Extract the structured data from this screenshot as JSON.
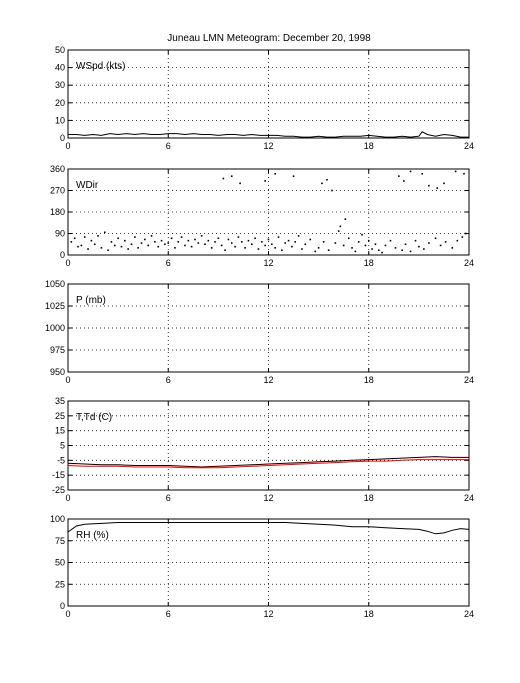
{
  "title": "Juneau LMN Meteogram:  December 20, 1998",
  "colors": {
    "line": "#000000",
    "dewpoint": "#ff0000",
    "grid": "#000000",
    "background": "#ffffff"
  },
  "chart_data": [
    {
      "type": "line",
      "label": "WSpd (kts)",
      "xlim": [
        0,
        24
      ],
      "ylim": [
        0,
        50
      ],
      "xticks": [
        0,
        6,
        12,
        18,
        24
      ],
      "yticks": [
        0,
        10,
        20,
        30,
        40,
        50
      ],
      "grid": true,
      "series": [
        {
          "color": "#000000",
          "x": [
            0,
            0.5,
            1,
            1.5,
            2,
            2.5,
            3,
            3.5,
            4,
            4.5,
            5,
            5.5,
            6,
            6.5,
            7,
            7.5,
            8,
            8.5,
            9,
            9.5,
            10,
            10.5,
            11,
            11.5,
            12,
            12.5,
            13,
            13.5,
            14,
            14.5,
            15,
            15.5,
            16,
            16.5,
            17,
            17.5,
            18,
            18.5,
            19,
            19.5,
            20,
            20.5,
            21,
            21.2,
            21.5,
            22,
            22.5,
            23,
            23.5,
            24
          ],
          "y": [
            2,
            2,
            1.5,
            2,
            1.5,
            2.5,
            2,
            2.5,
            2,
            2.5,
            2,
            2,
            2.5,
            2.5,
            2,
            2.5,
            2,
            2,
            1.5,
            2,
            2,
            1.5,
            2,
            1.5,
            1.5,
            1.5,
            1,
            1,
            0.5,
            0.5,
            1,
            0.5,
            0.5,
            1,
            1,
            1,
            1.5,
            1,
            0.5,
            0.5,
            1,
            0.5,
            1,
            3.5,
            2,
            1,
            2,
            1.5,
            0.5,
            0.5
          ]
        }
      ]
    },
    {
      "type": "scatter",
      "label": "WDir",
      "xlim": [
        0,
        24
      ],
      "ylim": [
        0,
        360
      ],
      "xticks": [
        0,
        6,
        12,
        18,
        24
      ],
      "yticks": [
        0,
        90,
        180,
        270,
        360
      ],
      "grid": true,
      "series": [
        {
          "color": "#000000",
          "x": [
            0.2,
            0.4,
            0.6,
            0.8,
            1,
            1.2,
            1.4,
            1.6,
            1.8,
            2,
            2.2,
            2.4,
            2.6,
            2.8,
            3,
            3.2,
            3.4,
            3.6,
            3.8,
            4,
            4.2,
            4.4,
            4.6,
            4.8,
            5,
            5.2,
            5.4,
            5.6,
            5.8,
            6,
            6.2,
            6.4,
            6.6,
            6.8,
            7,
            7.2,
            7.4,
            7.6,
            7.8,
            8,
            8.2,
            8.4,
            8.6,
            8.8,
            9,
            9.2,
            9.4,
            9.6,
            9.8,
            10,
            10.2,
            10.4,
            10.6,
            10.8,
            11,
            11.2,
            11.4,
            11.6,
            11.8,
            12,
            12.2,
            12.4,
            12.6,
            12.8,
            13,
            13.2,
            13.4,
            13.6,
            13.8,
            14,
            14.2,
            14.5,
            14.8,
            15,
            15.3,
            15.6,
            16,
            16.2,
            16.5,
            16.8,
            17,
            17.2,
            17.4,
            17.6,
            17.8,
            18,
            18.2,
            18.4,
            18.6,
            18.8,
            19,
            19.3,
            19.6,
            20,
            20.2,
            20.5,
            20.8,
            21,
            21.3,
            21.6,
            22,
            22.3,
            22.6,
            23,
            23.3,
            23.6,
            23.8,
            9.3,
            9.8,
            10.3,
            11.8,
            12.4,
            13.5,
            15.2,
            15.5,
            15.8,
            16.3,
            16.6,
            19.8,
            20.1,
            20.5,
            21.2,
            21.6,
            22.1,
            22.5,
            23.2,
            23.7
          ],
          "y": [
            55,
            70,
            35,
            40,
            75,
            25,
            60,
            45,
            80,
            30,
            95,
            20,
            55,
            40,
            70,
            35,
            60,
            25,
            45,
            75,
            30,
            50,
            65,
            40,
            80,
            55,
            35,
            60,
            45,
            50,
            70,
            30,
            55,
            75,
            40,
            60,
            35,
            65,
            50,
            80,
            45,
            60,
            30,
            55,
            70,
            40,
            20,
            65,
            50,
            35,
            75,
            55,
            30,
            60,
            45,
            70,
            25,
            55,
            40,
            65,
            45,
            30,
            75,
            20,
            50,
            60,
            35,
            55,
            80,
            25,
            45,
            65,
            15,
            30,
            55,
            20,
            50,
            100,
            40,
            70,
            30,
            15,
            55,
            85,
            40,
            60,
            25,
            45,
            20,
            10,
            40,
            60,
            30,
            20,
            45,
            15,
            60,
            35,
            25,
            50,
            70,
            40,
            55,
            30,
            60,
            75,
            90,
            320,
            330,
            300,
            310,
            340,
            330,
            300,
            315,
            270,
            120,
            150,
            330,
            310,
            350,
            340,
            290,
            280,
            300,
            350,
            340
          ]
        }
      ]
    },
    {
      "type": "line",
      "label": "P (mb)",
      "xlim": [
        0,
        24
      ],
      "ylim": [
        950,
        1050
      ],
      "xticks": [
        0,
        6,
        12,
        18,
        24
      ],
      "yticks": [
        950,
        975,
        1000,
        1025,
        1050
      ],
      "grid": true,
      "series": []
    },
    {
      "type": "line",
      "label": "T,Td (C)",
      "xlim": [
        0,
        24
      ],
      "ylim": [
        -25,
        35
      ],
      "xticks": [
        0,
        6,
        12,
        18,
        24
      ],
      "yticks": [
        -25,
        -15,
        -5,
        5,
        15,
        25,
        35
      ],
      "grid": true,
      "series": [
        {
          "color": "#000000",
          "x": [
            0,
            1,
            2,
            3,
            4,
            5,
            6,
            7,
            8,
            9,
            10,
            11,
            12,
            13,
            14,
            15,
            16,
            17,
            18,
            19,
            20,
            21,
            22,
            23,
            24
          ],
          "y": [
            -7,
            -7.5,
            -8,
            -8,
            -8.5,
            -8.5,
            -8.5,
            -9,
            -9.5,
            -9,
            -8.5,
            -8,
            -7.5,
            -7,
            -6.5,
            -6,
            -5.5,
            -5,
            -4.5,
            -4,
            -3.5,
            -3,
            -2.5,
            -3,
            -3
          ]
        },
        {
          "color": "#ff0000",
          "x": [
            0,
            1,
            2,
            3,
            4,
            5,
            6,
            7,
            8,
            9,
            10,
            11,
            12,
            13,
            14,
            15,
            16,
            17,
            18,
            19,
            20,
            21,
            22,
            23,
            24
          ],
          "y": [
            -8.5,
            -9,
            -9,
            -9,
            -9.5,
            -9.5,
            -9.5,
            -10,
            -10,
            -10,
            -9.5,
            -9,
            -8.5,
            -8,
            -7.5,
            -7,
            -6.5,
            -6,
            -5.5,
            -5.5,
            -5,
            -4.5,
            -4.5,
            -4.5,
            -4.5
          ]
        }
      ]
    },
    {
      "type": "line",
      "label": "RH (%)",
      "xlim": [
        0,
        24
      ],
      "ylim": [
        0,
        100
      ],
      "xticks": [
        0,
        6,
        12,
        18,
        24
      ],
      "yticks": [
        0,
        25,
        50,
        75,
        100
      ],
      "grid": true,
      "series": [
        {
          "color": "#000000",
          "x": [
            0,
            0.5,
            1,
            2,
            3,
            4,
            5,
            6,
            7,
            8,
            9,
            10,
            11,
            12,
            13,
            14,
            15,
            16,
            17,
            18,
            19,
            20,
            21,
            21.5,
            22,
            22.5,
            23,
            23.5,
            24
          ],
          "y": [
            85,
            92,
            94,
            95,
            96,
            96,
            96,
            96,
            96,
            96,
            96,
            96,
            96,
            96,
            96,
            95,
            94,
            93,
            91,
            91,
            90,
            89,
            88,
            86,
            83,
            84,
            87,
            89,
            88
          ]
        }
      ]
    }
  ]
}
